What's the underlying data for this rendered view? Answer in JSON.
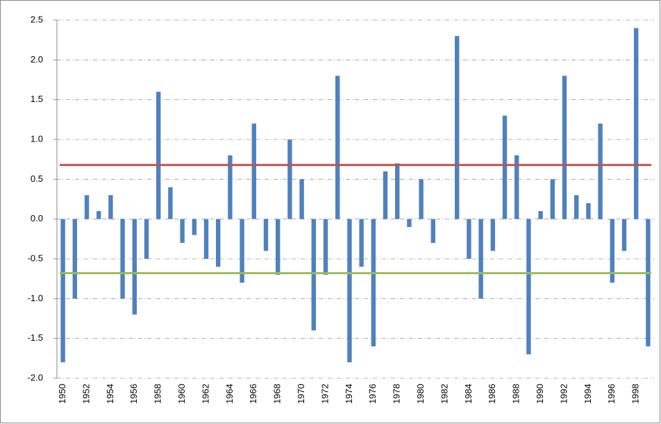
{
  "chart_data": {
    "type": "bar",
    "categories": [
      "1950",
      null,
      "1952",
      null,
      "1954",
      null,
      "1956",
      null,
      "1958",
      null,
      "1960",
      null,
      "1962",
      null,
      "1964",
      null,
      "1966",
      null,
      "1968",
      null,
      "1970",
      null,
      "1972",
      null,
      "1974",
      null,
      "1976",
      null,
      "1978",
      null,
      "1980",
      null,
      "1982",
      null,
      "1984",
      null,
      "1986",
      null,
      "1988",
      null,
      "1990",
      null,
      "1992",
      null,
      "1994",
      null,
      "1996",
      null,
      "1998",
      null
    ],
    "values": [
      -1.8,
      -1.0,
      0.3,
      0.1,
      0.3,
      -1.0,
      -1.2,
      -0.5,
      1.6,
      0.4,
      -0.3,
      -0.2,
      -0.5,
      -0.6,
      0.8,
      -0.8,
      1.2,
      -0.4,
      -0.7,
      1.0,
      0.5,
      -1.4,
      -0.7,
      1.8,
      -1.8,
      -0.6,
      -1.6,
      0.6,
      0.7,
      -0.1,
      0.5,
      -0.3,
      0,
      2.3,
      -0.5,
      -1.0,
      -0.4,
      1.3,
      0.8,
      -1.7,
      0.1,
      0.5,
      1.8,
      0.3,
      0.2,
      1.2,
      -0.8,
      -0.4,
      2.4,
      -1.6
    ],
    "color": "#4f81bd",
    "hlines": [
      {
        "value": 0.68,
        "color": "#c0504d"
      },
      {
        "value": -0.68,
        "color": "#9bbb59"
      }
    ],
    "ylim": [
      -2,
      2.5
    ],
    "yticks": [
      {
        "value": -2,
        "label": "-2.0"
      },
      -1.5,
      {
        "value": -1,
        "label": "-1.0"
      },
      -0.5,
      {
        "value": 0,
        "label": "0.0"
      },
      0.5,
      {
        "value": 1,
        "label": "1.0"
      },
      1.5,
      {
        "value": 2,
        "label": "2.0"
      },
      2.5
    ],
    "grid": true
  }
}
